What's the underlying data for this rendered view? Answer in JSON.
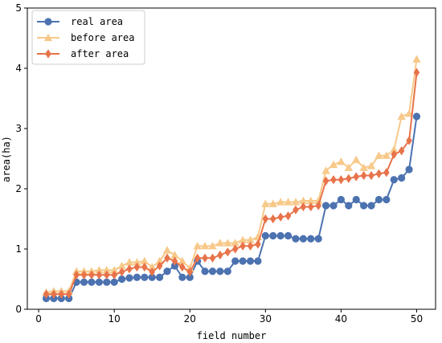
{
  "chart_data": {
    "type": "line",
    "xlabel": "field number",
    "ylabel": "area(ha)",
    "xlim": [
      -1.5,
      52.5
    ],
    "ylim": [
      0,
      5
    ],
    "xticks": [
      0,
      10,
      20,
      30,
      40,
      50
    ],
    "yticks": [
      0,
      1,
      2,
      3,
      4,
      5
    ],
    "grid": false,
    "legend_position": "top-left",
    "x": [
      1,
      2,
      3,
      4,
      5,
      6,
      7,
      8,
      9,
      10,
      11,
      12,
      13,
      14,
      15,
      16,
      17,
      18,
      19,
      20,
      21,
      22,
      23,
      24,
      25,
      26,
      27,
      28,
      29,
      30,
      31,
      32,
      33,
      34,
      35,
      36,
      37,
      38,
      39,
      40,
      41,
      42,
      43,
      44,
      45,
      46,
      47,
      48,
      49,
      50
    ],
    "series": [
      {
        "name": "real area",
        "color": "#4c72b0",
        "marker": "circle",
        "values": [
          0.18,
          0.18,
          0.18,
          0.18,
          0.45,
          0.45,
          0.45,
          0.45,
          0.45,
          0.45,
          0.5,
          0.52,
          0.53,
          0.53,
          0.53,
          0.53,
          0.63,
          0.72,
          0.53,
          0.53,
          0.8,
          0.63,
          0.63,
          0.63,
          0.63,
          0.8,
          0.8,
          0.8,
          0.8,
          1.22,
          1.22,
          1.22,
          1.22,
          1.17,
          1.17,
          1.17,
          1.17,
          1.72,
          1.72,
          1.82,
          1.72,
          1.82,
          1.72,
          1.72,
          1.82,
          1.82,
          2.15,
          2.18,
          2.32,
          3.2
        ]
      },
      {
        "name": "before area",
        "color": "#f7c98a",
        "marker": "triangle",
        "values": [
          0.28,
          0.3,
          0.3,
          0.3,
          0.63,
          0.63,
          0.63,
          0.65,
          0.65,
          0.65,
          0.72,
          0.78,
          0.78,
          0.8,
          0.7,
          0.8,
          0.98,
          0.9,
          0.8,
          0.68,
          1.05,
          1.05,
          1.05,
          1.1,
          1.1,
          1.1,
          1.15,
          1.15,
          1.2,
          1.75,
          1.75,
          1.78,
          1.78,
          1.78,
          1.8,
          1.8,
          1.8,
          2.3,
          2.4,
          2.45,
          2.35,
          2.48,
          2.35,
          2.38,
          2.55,
          2.55,
          2.65,
          3.2,
          3.25,
          4.15
        ]
      },
      {
        "name": "after area",
        "color": "#e8734a",
        "marker": "diamond",
        "values": [
          0.25,
          0.25,
          0.25,
          0.25,
          0.57,
          0.57,
          0.57,
          0.57,
          0.57,
          0.57,
          0.62,
          0.67,
          0.7,
          0.7,
          0.62,
          0.72,
          0.85,
          0.8,
          0.7,
          0.62,
          0.85,
          0.85,
          0.85,
          0.9,
          0.95,
          1.0,
          1.05,
          1.05,
          1.08,
          1.5,
          1.5,
          1.53,
          1.55,
          1.65,
          1.7,
          1.7,
          1.72,
          2.13,
          2.15,
          2.15,
          2.17,
          2.2,
          2.22,
          2.22,
          2.25,
          2.27,
          2.57,
          2.63,
          2.8,
          3.93
        ]
      }
    ]
  }
}
